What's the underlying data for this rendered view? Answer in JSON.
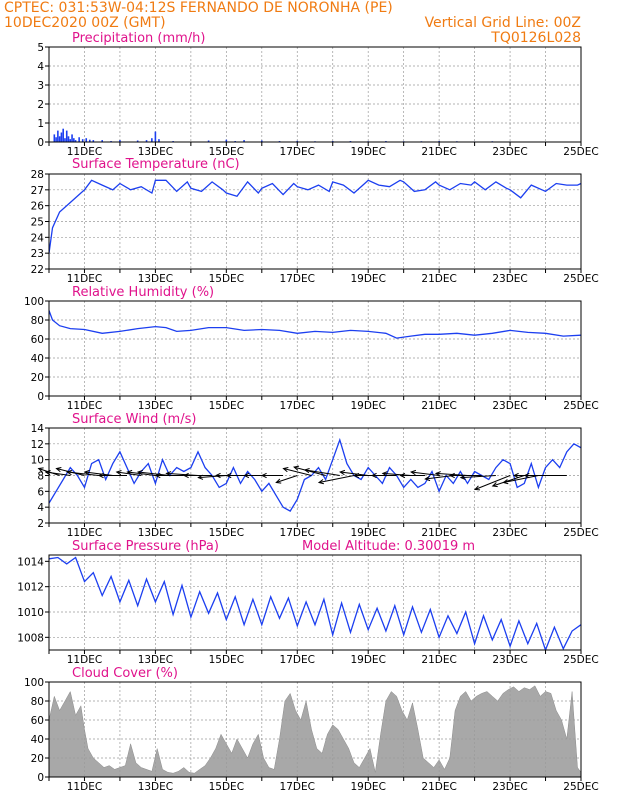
{
  "header": {
    "line1_left": "CPTEC:  031:53W-04:12S  FERNANDO DE NORONHA (PE)",
    "line2_left": "10DEC2020 00Z (GMT)",
    "line2_right": "Vertical Grid Line: 00Z",
    "line3_right": "TQ0126L028"
  },
  "colors": {
    "header": "#f07b12",
    "panel_title": "#e0138c",
    "series_line": "#1c3ff0",
    "cloud_fill": "#a8a8a8",
    "grid": "#9a9a9a"
  },
  "x_axis": {
    "start_day": 10,
    "end_day": 25,
    "tick_labels": [
      "11DEC",
      "13DEC",
      "15DEC",
      "17DEC",
      "19DEC",
      "21DEC",
      "23DEC",
      "25DEC"
    ],
    "tick_days": [
      11,
      13,
      15,
      17,
      19,
      21,
      23,
      25
    ]
  },
  "chart_data": [
    {
      "type": "bar",
      "id": "precip",
      "title": "Precipitation (mm/h)",
      "ylim": [
        0,
        5
      ],
      "yticks": [
        "0",
        "1",
        "2",
        "3",
        "4",
        "5"
      ],
      "x_days": [
        10.15,
        10.2,
        10.25,
        10.3,
        10.35,
        10.4,
        10.45,
        10.5,
        10.55,
        10.6,
        10.65,
        10.7,
        10.75,
        10.85,
        10.95,
        11.05,
        11.15,
        11.25,
        11.5,
        11.75,
        12.0,
        12.5,
        12.75,
        12.9,
        13.0,
        13.1,
        13.5,
        14.5,
        15.0,
        15.25,
        15.5,
        16.0,
        16.5,
        17.0,
        17.5,
        18.0,
        18.5,
        19.0,
        19.5,
        20.0,
        20.5,
        21.0,
        21.5,
        22.0,
        22.5,
        23.0
      ],
      "values": [
        0.4,
        0.25,
        0.6,
        0.3,
        0.5,
        0.7,
        0.2,
        0.6,
        0.3,
        0.15,
        0.4,
        0.2,
        0.1,
        0.25,
        0.15,
        0.2,
        0.12,
        0.1,
        0.1,
        0.05,
        0.1,
        0.08,
        0.1,
        0.2,
        0.55,
        0.15,
        0.05,
        0.08,
        0.12,
        0.05,
        0.1,
        0.08,
        0.05,
        0.06,
        0.04,
        0.05,
        0.05,
        0.04,
        0.05,
        0.04,
        0.04,
        0.05,
        0.04,
        0.03,
        0.04,
        0.03
      ]
    },
    {
      "type": "line",
      "id": "temp",
      "title": "Surface Temperature (nC)",
      "ylim": [
        22,
        28
      ],
      "yticks": [
        "22",
        "23",
        "24",
        "25",
        "26",
        "27",
        "28"
      ],
      "x": [
        10.0,
        10.1,
        10.3,
        10.6,
        10.9,
        11.0,
        11.2,
        11.5,
        11.8,
        12.0,
        12.3,
        12.6,
        12.9,
        13.0,
        13.3,
        13.6,
        13.9,
        14.0,
        14.3,
        14.6,
        14.9,
        15.0,
        15.3,
        15.6,
        15.9,
        16.0,
        16.3,
        16.6,
        16.9,
        17.0,
        17.3,
        17.6,
        17.9,
        18.0,
        18.3,
        18.6,
        18.9,
        19.0,
        19.3,
        19.6,
        19.9,
        20.0,
        20.3,
        20.6,
        20.9,
        21.0,
        21.3,
        21.6,
        21.9,
        22.0,
        22.3,
        22.6,
        22.9,
        23.0,
        23.3,
        23.6,
        23.9,
        24.0,
        24.3,
        24.6,
        24.9,
        25.0
      ],
      "y": [
        23.0,
        24.6,
        25.6,
        26.2,
        26.8,
        27.0,
        27.6,
        27.3,
        27.0,
        27.4,
        27.0,
        27.2,
        26.8,
        27.6,
        27.6,
        26.9,
        27.5,
        27.1,
        26.9,
        27.5,
        27.0,
        26.8,
        26.6,
        27.5,
        26.8,
        27.1,
        27.4,
        26.7,
        27.4,
        27.2,
        27.0,
        27.3,
        26.9,
        27.5,
        27.3,
        26.8,
        27.4,
        27.6,
        27.3,
        27.2,
        27.6,
        27.5,
        26.9,
        27.0,
        27.5,
        27.3,
        27.0,
        27.4,
        27.3,
        27.5,
        27.0,
        27.5,
        27.1,
        27.0,
        26.5,
        27.3,
        27.0,
        26.9,
        27.4,
        27.3,
        27.3,
        27.4
      ]
    },
    {
      "type": "line",
      "id": "rh",
      "title": "Relative Humidity (%)",
      "ylim": [
        0,
        100
      ],
      "yticks": [
        "0",
        "20",
        "40",
        "60",
        "80",
        "100"
      ],
      "x": [
        10.0,
        10.1,
        10.3,
        10.6,
        11.0,
        11.5,
        12.0,
        12.5,
        13.0,
        13.3,
        13.6,
        14.0,
        14.5,
        15.0,
        15.5,
        16.0,
        16.5,
        17.0,
        17.5,
        18.0,
        18.5,
        19.0,
        19.5,
        19.8,
        20.2,
        20.6,
        21.0,
        21.5,
        22.0,
        22.5,
        23.0,
        23.5,
        24.0,
        24.5,
        25.0
      ],
      "y": [
        90,
        80,
        74,
        71,
        70,
        66,
        68,
        71,
        73,
        72,
        68,
        69,
        72,
        72,
        69,
        70,
        69,
        66,
        68,
        67,
        69,
        68,
        66,
        61,
        63,
        65,
        65,
        66,
        64,
        66,
        69,
        67,
        66,
        63,
        64
      ]
    },
    {
      "type": "line",
      "id": "wind",
      "title": "Surface Wind (m/s)",
      "ylim": [
        2,
        14
      ],
      "yticks": [
        "2",
        "4",
        "6",
        "8",
        "10",
        "12",
        "14"
      ],
      "x": [
        10.0,
        10.2,
        10.4,
        10.6,
        10.8,
        11.0,
        11.2,
        11.4,
        11.6,
        11.8,
        12.0,
        12.2,
        12.4,
        12.6,
        12.8,
        13.0,
        13.2,
        13.4,
        13.6,
        13.8,
        14.0,
        14.2,
        14.4,
        14.6,
        14.8,
        15.0,
        15.2,
        15.4,
        15.6,
        15.8,
        16.0,
        16.2,
        16.4,
        16.6,
        16.8,
        17.0,
        17.2,
        17.4,
        17.6,
        17.8,
        18.0,
        18.2,
        18.4,
        18.6,
        18.8,
        19.0,
        19.2,
        19.4,
        19.6,
        19.8,
        20.0,
        20.2,
        20.4,
        20.6,
        20.8,
        21.0,
        21.2,
        21.4,
        21.6,
        21.8,
        22.0,
        22.2,
        22.4,
        22.6,
        22.8,
        23.0,
        23.2,
        23.4,
        23.6,
        23.8,
        24.0,
        24.2,
        24.4,
        24.6,
        24.8,
        25.0
      ],
      "y": [
        4.5,
        6.0,
        7.5,
        9.0,
        8.0,
        6.5,
        9.5,
        10.0,
        7.5,
        9.5,
        11.0,
        9.0,
        7.0,
        8.5,
        9.5,
        7.0,
        10.0,
        8.0,
        9.0,
        8.5,
        9.0,
        11.0,
        9.0,
        8.0,
        6.5,
        7.0,
        9.0,
        7.0,
        8.5,
        7.5,
        6.0,
        7.0,
        5.5,
        4.0,
        3.5,
        5.0,
        7.5,
        8.0,
        9.0,
        7.5,
        10.0,
        12.5,
        9.5,
        8.0,
        7.5,
        9.0,
        8.0,
        7.0,
        9.0,
        8.0,
        6.5,
        7.5,
        6.5,
        7.0,
        8.5,
        6.0,
        8.0,
        7.0,
        8.5,
        7.0,
        8.5,
        8.0,
        7.5,
        9.0,
        10.0,
        9.5,
        6.5,
        7.0,
        9.5,
        6.5,
        9.0,
        10.0,
        9.0,
        11.0,
        12.0,
        11.5
      ],
      "vectors": {
        "x": [
          10.3,
          10.6,
          11.0,
          11.4,
          11.8,
          12.2,
          12.6,
          13.0,
          13.4,
          13.8,
          14.2,
          14.6,
          15.0,
          15.4,
          15.8,
          16.2,
          16.6,
          17.0,
          17.4,
          17.8,
          18.2,
          18.6,
          19.0,
          19.4,
          19.8,
          20.2,
          20.6,
          21.0,
          21.4,
          21.8,
          22.2,
          22.6,
          23.0,
          23.4,
          23.8,
          24.2,
          24.6
        ],
        "u": [
          -3.0,
          -3.5,
          -4.0,
          -4.5,
          -4.0,
          -4.0,
          -3.5,
          -4.0,
          -4.5,
          -4.0,
          -4.5,
          -4.0,
          -4.0,
          -3.5,
          -4.0,
          -3.5,
          -3.0,
          -3.0,
          -4.0,
          -4.5,
          -5.0,
          -5.0,
          -4.0,
          -4.0,
          -3.5,
          -4.0,
          -3.5,
          -4.0,
          -4.0,
          -4.5,
          -4.5,
          -5.0,
          -5.0,
          -4.5,
          -5.0,
          -5.5,
          -6.0
        ],
        "v": [
          1.0,
          0.5,
          1.0,
          0.5,
          0.5,
          0.0,
          0.5,
          0.5,
          0.5,
          0.0,
          0.3,
          0.0,
          -0.3,
          0.0,
          0.0,
          0.0,
          0.0,
          -1.0,
          1.0,
          1.2,
          0.8,
          -1.0,
          0.5,
          0.0,
          0.0,
          0.3,
          0.0,
          0.5,
          -0.5,
          0.3,
          0.0,
          -0.3,
          -2.0,
          -1.5,
          -1.0,
          0.0,
          0.0
        ]
      }
    },
    {
      "type": "line",
      "id": "pressure",
      "title": "Surface Pressure (hPa)",
      "ylim": [
        1007,
        1014.5
      ],
      "yticks": [
        "1008",
        "1010",
        "1012",
        "1014"
      ],
      "annotation": "Model Altitude: 0.30019 m",
      "x": [
        10.0,
        10.25,
        10.5,
        10.75,
        11.0,
        11.25,
        11.5,
        11.75,
        12.0,
        12.25,
        12.5,
        12.75,
        13.0,
        13.25,
        13.5,
        13.75,
        14.0,
        14.25,
        14.5,
        14.75,
        15.0,
        15.25,
        15.5,
        15.75,
        16.0,
        16.25,
        16.5,
        16.75,
        17.0,
        17.25,
        17.5,
        17.75,
        18.0,
        18.25,
        18.5,
        18.75,
        19.0,
        19.25,
        19.5,
        19.75,
        20.0,
        20.25,
        20.5,
        20.75,
        21.0,
        21.25,
        21.5,
        21.75,
        22.0,
        22.25,
        22.5,
        22.75,
        23.0,
        23.25,
        23.5,
        23.75,
        24.0,
        24.25,
        24.5,
        24.75,
        25.0
      ],
      "y": [
        1014.2,
        1014.3,
        1013.8,
        1014.3,
        1012.4,
        1013.1,
        1011.3,
        1012.8,
        1010.8,
        1012.5,
        1010.5,
        1012.6,
        1010.8,
        1012.4,
        1009.8,
        1012.1,
        1009.6,
        1011.6,
        1009.9,
        1011.5,
        1009.4,
        1011.2,
        1009.0,
        1011.0,
        1009.0,
        1011.2,
        1009.5,
        1011.1,
        1008.9,
        1010.8,
        1009.0,
        1011.0,
        1008.2,
        1010.7,
        1008.4,
        1010.6,
        1008.6,
        1010.3,
        1008.5,
        1010.5,
        1008.2,
        1010.4,
        1008.4,
        1010.2,
        1008.0,
        1009.7,
        1008.3,
        1010.0,
        1007.5,
        1009.7,
        1007.8,
        1009.4,
        1007.3,
        1009.3,
        1007.5,
        1009.1,
        1007.0,
        1008.8,
        1007.1,
        1008.5,
        1009.0
      ]
    },
    {
      "type": "area",
      "id": "cloud",
      "title": "Cloud Cover (%)",
      "ylim": [
        0,
        100
      ],
      "yticks": [
        "0",
        "20",
        "40",
        "60",
        "80",
        "100"
      ],
      "x": [
        10.0,
        10.15,
        10.3,
        10.45,
        10.6,
        10.75,
        10.9,
        11.0,
        11.1,
        11.25,
        11.4,
        11.55,
        11.7,
        11.85,
        12.0,
        12.15,
        12.3,
        12.45,
        12.6,
        12.75,
        12.9,
        13.05,
        13.2,
        13.35,
        13.5,
        13.65,
        13.8,
        13.95,
        14.1,
        14.25,
        14.4,
        14.55,
        14.7,
        14.85,
        15.0,
        15.15,
        15.3,
        15.45,
        15.6,
        15.75,
        15.9,
        16.05,
        16.2,
        16.35,
        16.5,
        16.65,
        16.8,
        16.95,
        17.1,
        17.25,
        17.4,
        17.55,
        17.7,
        17.85,
        18.0,
        18.15,
        18.3,
        18.45,
        18.6,
        18.75,
        18.9,
        19.05,
        19.2,
        19.35,
        19.5,
        19.65,
        19.8,
        19.95,
        20.1,
        20.25,
        20.4,
        20.55,
        20.7,
        20.85,
        21.0,
        21.15,
        21.3,
        21.45,
        21.6,
        21.75,
        21.9,
        22.05,
        22.2,
        22.35,
        22.5,
        22.65,
        22.8,
        22.95,
        23.1,
        23.25,
        23.4,
        23.55,
        23.7,
        23.85,
        24.0,
        24.15,
        24.3,
        24.45,
        24.6,
        24.75,
        24.9,
        25.0
      ],
      "y": [
        60,
        85,
        70,
        80,
        90,
        65,
        75,
        50,
        30,
        20,
        15,
        10,
        12,
        8,
        10,
        12,
        35,
        15,
        10,
        8,
        6,
        30,
        8,
        5,
        4,
        6,
        10,
        5,
        4,
        8,
        12,
        20,
        30,
        45,
        35,
        25,
        40,
        30,
        20,
        35,
        45,
        20,
        10,
        8,
        40,
        80,
        88,
        70,
        60,
        80,
        50,
        30,
        25,
        45,
        55,
        50,
        40,
        30,
        15,
        10,
        20,
        30,
        5,
        45,
        80,
        90,
        85,
        70,
        60,
        78,
        50,
        20,
        15,
        10,
        18,
        8,
        20,
        70,
        85,
        90,
        80,
        85,
        88,
        90,
        85,
        80,
        88,
        92,
        95,
        90,
        94,
        92,
        96,
        85,
        90,
        88,
        70,
        60,
        40,
        90,
        10,
        5
      ]
    }
  ]
}
